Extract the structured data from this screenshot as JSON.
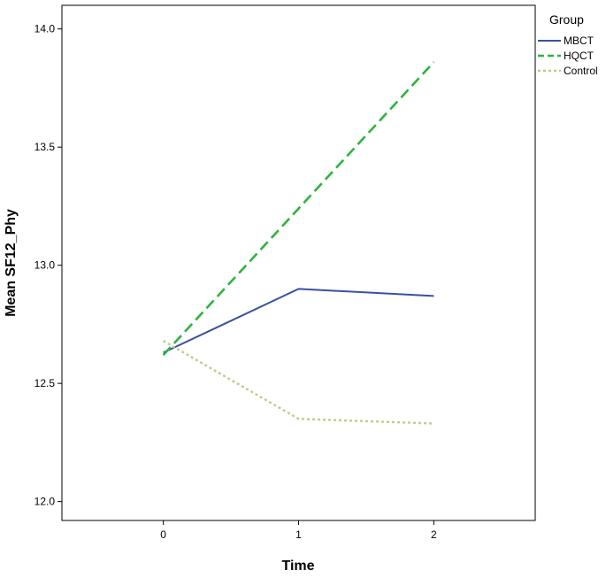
{
  "chart_data": {
    "type": "line",
    "title": "",
    "xlabel": "Time",
    "ylabel": "Mean SF12_Phy",
    "x": [
      0,
      1,
      2
    ],
    "xlim": [
      -0.75,
      2.75
    ],
    "ylim": [
      11.92,
      14.1
    ],
    "yticks": [
      12.0,
      12.5,
      13.0,
      13.5,
      14.0
    ],
    "ytick_labels": [
      "12.0",
      "12.5",
      "13.0",
      "13.5",
      "14.0"
    ],
    "xtick_labels": [
      "0",
      "1",
      "2"
    ],
    "grid": false,
    "legend": {
      "title": "Group",
      "placement": "right, outside plot"
    },
    "series": [
      {
        "name": "MBCT",
        "values": [
          12.63,
          12.9,
          12.87
        ],
        "color": "#3a50a0",
        "style": "solid"
      },
      {
        "name": "HQCT",
        "values": [
          12.62,
          13.24,
          13.86
        ],
        "color": "#2eb33e",
        "style": "dashed"
      },
      {
        "name": "Control",
        "values": [
          12.68,
          12.35,
          12.33
        ],
        "color": "#c8c88a",
        "style": "dotted"
      }
    ]
  }
}
